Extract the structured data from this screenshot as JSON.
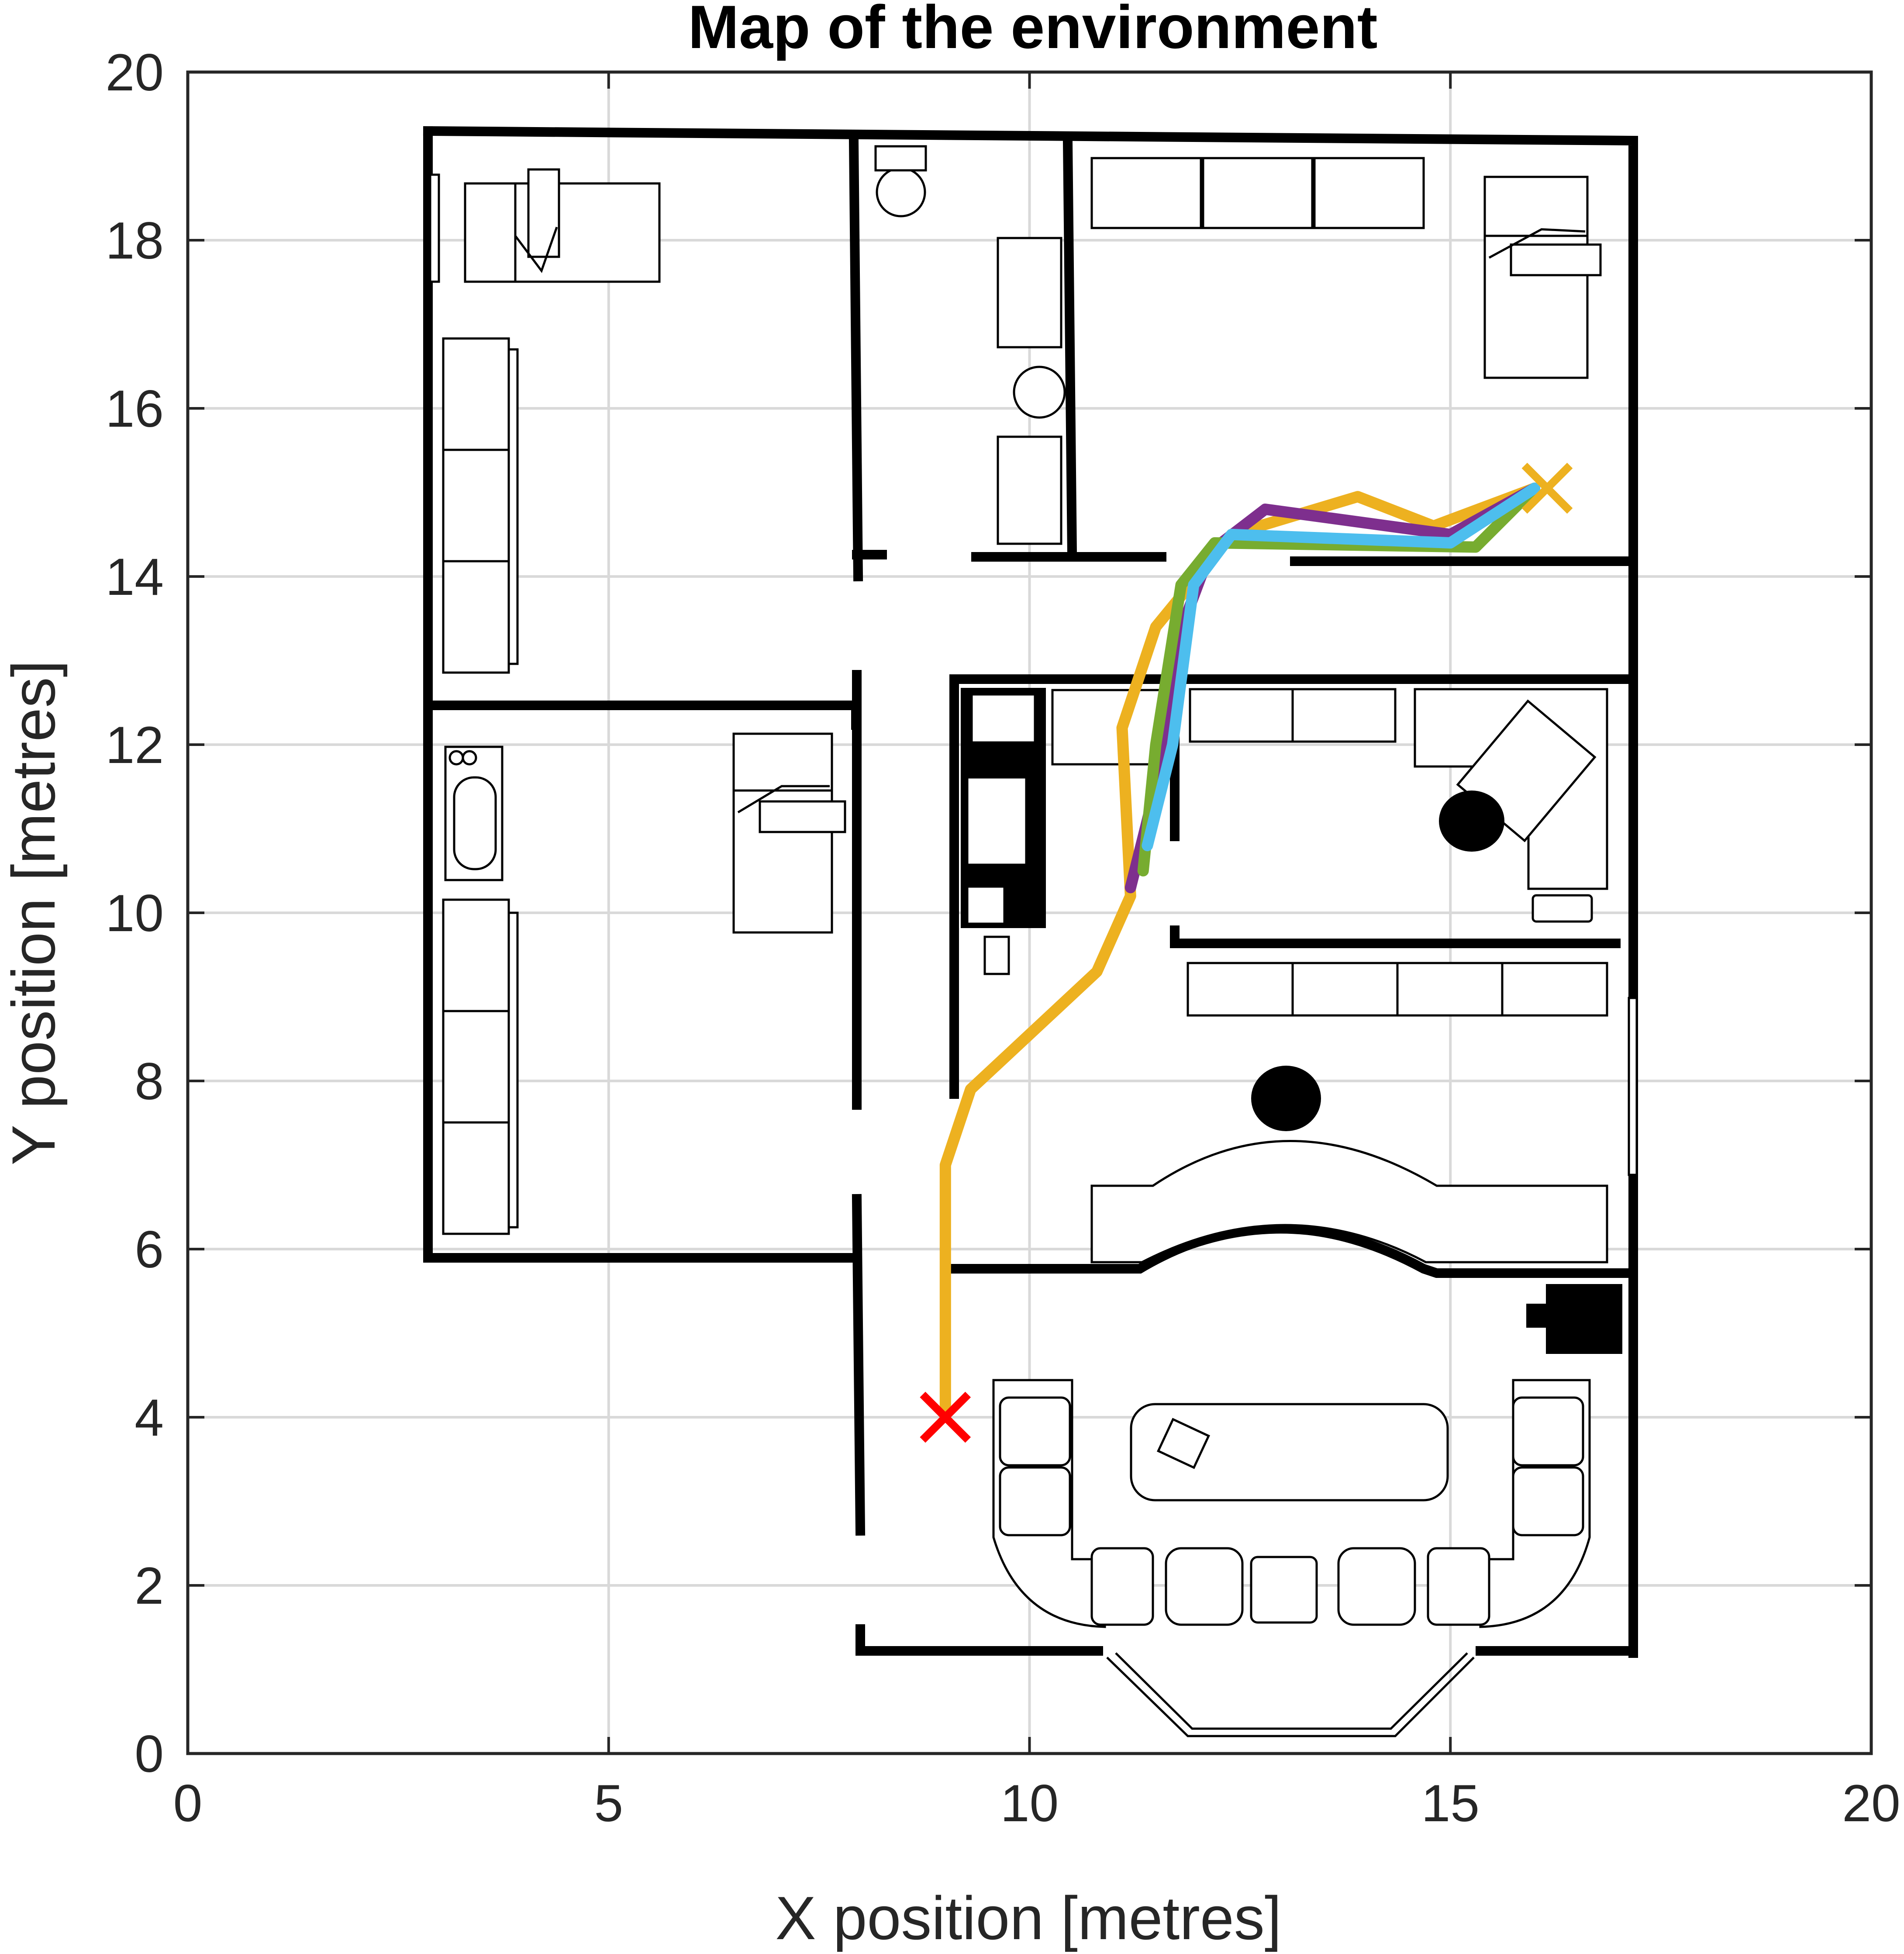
{
  "chart_data": {
    "type": "line",
    "title": "Map of the environment",
    "xlabel": "X position [metres]",
    "ylabel": "Y position [metres]",
    "xlim": [
      0,
      20
    ],
    "ylim": [
      0,
      20
    ],
    "xticks": [
      0,
      5,
      10,
      15,
      20
    ],
    "yticks": [
      0,
      2,
      4,
      6,
      8,
      10,
      12,
      14,
      16,
      18,
      20
    ],
    "grid": true,
    "background": "floor-plan map of the environment",
    "series": [
      {
        "color": "#EDB120",
        "x": [
          9.0,
          9.0,
          9.0,
          9.3,
          10.8,
          11.2,
          11.1,
          11.5,
          12.4,
          13.9,
          14.8,
          16.0
        ],
        "y": [
          4.0,
          6.0,
          7.0,
          7.9,
          9.3,
          10.2,
          12.2,
          13.4,
          14.5,
          14.95,
          14.6,
          15.05
        ]
      },
      {
        "color": "#7E2F8E",
        "x": [
          11.2,
          11.55,
          11.85,
          12.15,
          12.8,
          15.0,
          16.0
        ],
        "y": [
          10.3,
          11.7,
          13.5,
          14.3,
          14.8,
          14.5,
          15.05
        ]
      },
      {
        "color": "#77AC30",
        "x": [
          11.35,
          11.5,
          11.8,
          12.2,
          15.3,
          16.0
        ],
        "y": [
          10.5,
          12.0,
          13.9,
          14.4,
          14.35,
          15.05
        ]
      },
      {
        "color": "#4DBEEE",
        "x": [
          11.4,
          11.7,
          11.95,
          12.4,
          15.0,
          16.0
        ],
        "y": [
          10.8,
          12.0,
          13.9,
          14.5,
          14.4,
          15.05
        ]
      }
    ],
    "markers": [
      {
        "shape": "x",
        "color": "#FF0000",
        "x": 9.0,
        "y": 4.0
      },
      {
        "shape": "x",
        "color": "#EDB120",
        "x": 16.15,
        "y": 15.05
      }
    ]
  }
}
